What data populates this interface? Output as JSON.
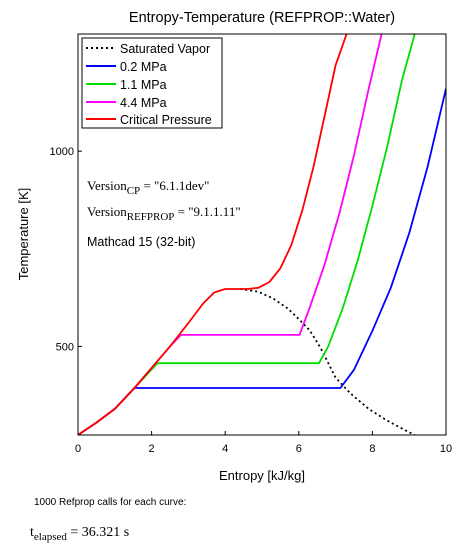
{
  "chart_data": {
    "type": "line",
    "title": "Entropy-Temperature (REFPROP::Water)",
    "xlabel": "Entropy [kJ/kg]",
    "ylabel": "Temperature [K]",
    "xlim": [
      0,
      10
    ],
    "ylim": [
      273.15,
      1300
    ],
    "x_ticks": [
      "0",
      "2",
      "4",
      "6",
      "8",
      "10"
    ],
    "y_ticks": [
      "500",
      "1000"
    ],
    "legend_position": "top-left",
    "series": [
      {
        "name": "Saturated Vapor",
        "color": "#000000",
        "style": "dotted",
        "x": [
          4.41,
          4.9,
          5.3,
          5.7,
          6.0,
          6.3,
          6.6,
          7.0,
          7.4,
          7.9,
          8.4,
          8.9,
          9.15
        ],
        "y": [
          647.1,
          640,
          623,
          597,
          570,
          541,
          495,
          420,
          380,
          340,
          310,
          285,
          273.15
        ]
      },
      {
        "name": "0.2 MPa",
        "color": "#0000ff",
        "style": "solid",
        "x": [
          0,
          0.5,
          1.0,
          1.53,
          7.13,
          7.5,
          8.0,
          8.5,
          9.0,
          9.5,
          10.0
        ],
        "y": [
          273.15,
          305,
          340,
          393.4,
          393.4,
          440,
          540,
          650,
          790,
          960,
          1160
        ]
      },
      {
        "name": "1.1 MPa",
        "color": "#00dd00",
        "style": "solid",
        "x": [
          0,
          0.5,
          1.0,
          1.5,
          2.16,
          6.55,
          6.8,
          7.2,
          7.6,
          8.0,
          8.4,
          8.8,
          9.15
        ],
        "y": [
          273.15,
          305,
          340,
          390,
          457.1,
          457.1,
          500,
          600,
          720,
          860,
          1010,
          1180,
          1300
        ]
      },
      {
        "name": "4.4 MPa",
        "color": "#ff00ff",
        "style": "solid",
        "x": [
          0,
          0.5,
          1.0,
          1.5,
          2.0,
          2.5,
          2.8,
          6.02,
          6.3,
          6.7,
          7.1,
          7.5,
          7.9,
          8.25
        ],
        "y": [
          273.15,
          305,
          340,
          390,
          445,
          500,
          529.6,
          529.6,
          600,
          710,
          840,
          990,
          1160,
          1300
        ]
      },
      {
        "name": "Critical Pressure",
        "color": "#ff0000",
        "style": "solid",
        "x": [
          0,
          0.5,
          1.0,
          1.5,
          2.0,
          2.5,
          3.0,
          3.4,
          3.7,
          4.0,
          4.3,
          4.6,
          4.9,
          5.2,
          5.5,
          5.8,
          6.1,
          6.4,
          6.7,
          7.0,
          7.3
        ],
        "y": [
          273.15,
          305,
          340,
          390,
          445,
          500,
          560,
          610,
          638,
          647,
          647,
          647,
          650,
          665,
          700,
          760,
          850,
          960,
          1090,
          1220,
          1300
        ]
      }
    ]
  },
  "annotations": {
    "version_cp_label": "Version",
    "version_cp_sub": "CP",
    "version_cp_value": " = \"6.1.1dev\"",
    "version_refprop_label": "Version",
    "version_refprop_sub": "REFPROP",
    "version_refprop_value": " = \"9.1.1.11\"",
    "mathcad_label": "Mathcad 15 (32-bit)"
  },
  "footer": {
    "note": "1000 Refprop calls for each curve:",
    "elapsed_label": "t",
    "elapsed_sub": "elapsed",
    "elapsed_value": " = 36.321 s"
  }
}
